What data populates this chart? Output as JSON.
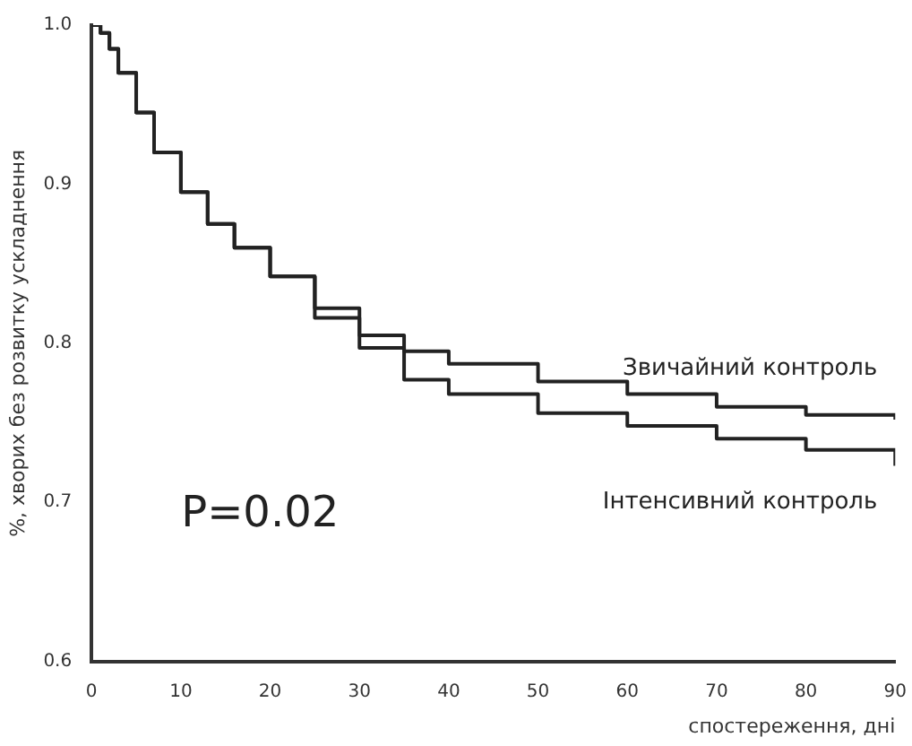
{
  "chart_data": {
    "type": "step",
    "xlabel": "спостереження, дні",
    "ylabel": "%, хворих без розвитку ускладнення",
    "annotations": [
      "P=0.02"
    ],
    "xlim": [
      0,
      90
    ],
    "xticks": [
      0,
      10,
      20,
      30,
      40,
      50,
      60,
      70,
      80,
      90
    ],
    "ylim": [
      0.6,
      1.0
    ],
    "yticks": [
      {
        "value": 0.6,
        "label": "0.6"
      },
      {
        "value": 0.7,
        "label": "0.7"
      },
      {
        "value": 0.8,
        "label": "0.8"
      },
      {
        "value": 0.9,
        "label": "0.9"
      },
      {
        "value": 1.0,
        "label": "1.0"
      }
    ],
    "grid": false,
    "legend": false,
    "marker": "none",
    "x": [
      0,
      1,
      2,
      3,
      5,
      7,
      10,
      13,
      16,
      20,
      25,
      30,
      35,
      40,
      50,
      60,
      70,
      80,
      90
    ],
    "series": [
      {
        "name": "Звичайний контроль",
        "color": "#222222",
        "values": [
          1.0,
          0.995,
          0.985,
          0.97,
          0.945,
          0.92,
          0.895,
          0.875,
          0.86,
          0.842,
          0.822,
          0.805,
          0.795,
          0.787,
          0.776,
          0.768,
          0.76,
          0.755,
          0.752
        ]
      },
      {
        "name": "Інтенсивний контроль",
        "color": "#222222",
        "values": [
          1.0,
          0.995,
          0.985,
          0.97,
          0.945,
          0.92,
          0.895,
          0.875,
          0.86,
          0.842,
          0.816,
          0.797,
          0.777,
          0.768,
          0.756,
          0.748,
          0.74,
          0.733,
          0.723
        ]
      }
    ]
  }
}
